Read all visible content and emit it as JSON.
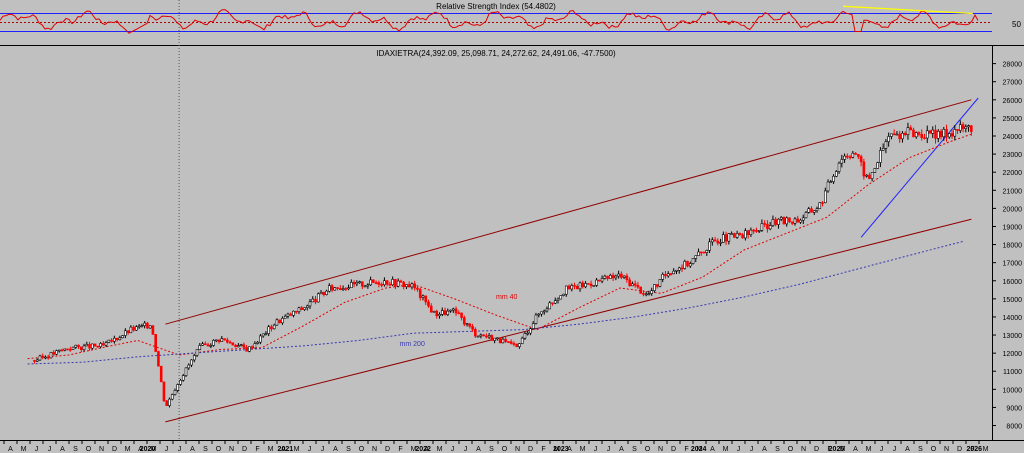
{
  "chart_data": [
    {
      "type": "line",
      "title": "Relative Strength Index (54.4802)",
      "ylim": [
        0,
        100
      ],
      "levels": [
        30,
        50,
        70
      ],
      "y_tick_labels": [
        {
          "value": 50,
          "label": "50"
        }
      ],
      "rsi_last": 54.4802,
      "trendline": {
        "x": [
          2025.12,
          2026.06
        ],
        "y": [
          86,
          70
        ],
        "color": "#ffff00"
      }
    },
    {
      "type": "line",
      "title": "IDAXIETRA(24,392.09, 25,098.71, 24,272.62, 24,491.06, -47.7500)",
      "series": [
        {
          "name": "",
          "kind": "candlestick",
          "x": [
            2019.25,
            2019.5,
            2019.75,
            2019.95,
            2020.1,
            2020.2,
            2020.3,
            2020.45,
            2020.6,
            2020.8,
            2021.0,
            2021.2,
            2021.4,
            2021.6,
            2021.8,
            2022.0,
            2022.15,
            2022.3,
            2022.45,
            2022.6,
            2022.75,
            2022.9,
            2023.1,
            2023.3,
            2023.5,
            2023.7,
            2023.85,
            2024.0,
            2024.2,
            2024.4,
            2024.6,
            2024.8,
            2024.95,
            2025.1,
            2025.2,
            2025.3,
            2025.45,
            2025.6,
            2025.8,
            2025.95,
            2026.05
          ],
          "y": [
            11600,
            12300,
            12400,
            13300,
            13600,
            9000,
            10500,
            12300,
            12800,
            12200,
            13700,
            14500,
            15600,
            15800,
            16000,
            15700,
            14200,
            14300,
            13100,
            12800,
            12300,
            14100,
            15500,
            15900,
            16300,
            15200,
            16500,
            17000,
            18300,
            18500,
            19200,
            19400,
            20200,
            22800,
            23200,
            21500,
            24000,
            24200,
            24000,
            24400,
            24491
          ]
        },
        {
          "name": "mm 40",
          "kind": "moving-average",
          "color": "#e00000",
          "x": [
            2019.2,
            2019.5,
            2019.8,
            2020.0,
            2020.3,
            2020.6,
            2020.9,
            2021.2,
            2021.5,
            2021.8,
            2022.0,
            2022.3,
            2022.6,
            2022.9,
            2023.2,
            2023.5,
            2023.8,
            2024.1,
            2024.4,
            2024.7,
            2025.0,
            2025.3,
            2025.6,
            2025.9,
            2026.05
          ],
          "y": [
            11700,
            11900,
            12400,
            12700,
            11900,
            12200,
            12300,
            13500,
            14800,
            15600,
            15800,
            15000,
            14100,
            13300,
            14500,
            15600,
            15300,
            16200,
            17700,
            18600,
            19500,
            21300,
            22800,
            23700,
            24100
          ]
        },
        {
          "name": "mm 200",
          "kind": "moving-average",
          "color": "#3838b0",
          "x": [
            2019.2,
            2019.6,
            2020.0,
            2020.4,
            2020.8,
            2021.2,
            2021.6,
            2022.0,
            2022.4,
            2022.8,
            2023.2,
            2023.6,
            2024.0,
            2024.4,
            2024.8,
            2025.2,
            2025.6,
            2026.0
          ],
          "y": [
            11400,
            11500,
            11800,
            12000,
            12200,
            12400,
            12700,
            13100,
            13200,
            13300,
            13600,
            14000,
            14500,
            15100,
            15800,
            16600,
            17400,
            18200
          ]
        }
      ],
      "annotations": [
        {
          "text": "mm 40",
          "x": 2022.6,
          "y": 15000,
          "color": "#e00000"
        },
        {
          "text": "mm 200",
          "x": 2021.9,
          "y": 12400,
          "color": "#3838b0"
        }
      ],
      "trendlines": [
        {
          "name": "upper channel",
          "color": "#900000",
          "x": [
            2020.2,
            2026.05
          ],
          "y": [
            13600,
            26000
          ]
        },
        {
          "name": "lower channel",
          "color": "#900000",
          "x": [
            2020.2,
            2026.05
          ],
          "y": [
            8200,
            19400
          ]
        },
        {
          "name": "support",
          "color": "#2020ff",
          "x": [
            2025.25,
            2026.1
          ],
          "y": [
            18400,
            26100
          ]
        }
      ],
      "ylim": [
        7200,
        28200
      ],
      "yticks": [
        8000,
        9000,
        10000,
        11000,
        12000,
        13000,
        14000,
        15000,
        16000,
        17000,
        18000,
        19000,
        20000,
        21000,
        22000,
        23000,
        24000,
        25000,
        26000,
        27000,
        28000
      ],
      "xlim": [
        2019.0,
        2026.2
      ],
      "year_labels": [
        {
          "x": 2020.0,
          "label": "2020"
        },
        {
          "x": 2021.0,
          "label": "2021"
        },
        {
          "x": 2022.0,
          "label": "2022"
        },
        {
          "x": 2023.0,
          "label": "2023"
        },
        {
          "x": 2024.0,
          "label": "2024"
        },
        {
          "x": 2025.0,
          "label": "2025"
        },
        {
          "x": 2026.0,
          "label": "2026"
        }
      ],
      "month_labels": [
        "A",
        "M",
        "J",
        "J",
        "A",
        "S",
        "O",
        "N",
        "D",
        "M",
        "A",
        "M",
        "J",
        "J",
        "A",
        "S",
        "O",
        "N",
        "D",
        "F",
        "M",
        "A",
        "M",
        "J",
        "J",
        "A",
        "S",
        "O",
        "N",
        "D",
        "F",
        "M",
        "A",
        "M",
        "J",
        "J",
        "A",
        "S",
        "O",
        "N",
        "D",
        "F",
        "M",
        "A",
        "M",
        "J",
        "J",
        "A",
        "S",
        "O",
        "N",
        "D",
        "F",
        "M",
        "A",
        "M",
        "J",
        "J",
        "A",
        "S",
        "O",
        "N",
        "D",
        "F",
        "M",
        "A",
        "M",
        "J",
        "J",
        "A",
        "S",
        "O",
        "N",
        "D",
        "F",
        "M"
      ],
      "cursor_x": 2020.3,
      "grid": false,
      "colors": {
        "background": "#c0c0c0",
        "up_candle": "#000000",
        "down_candle": "#ff0000"
      }
    }
  ]
}
